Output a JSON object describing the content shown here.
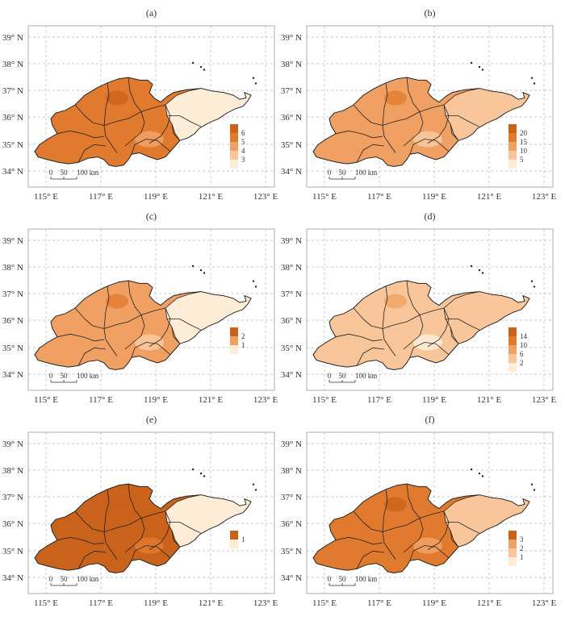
{
  "figure": {
    "colors": {
      "c1": "#fdecd6",
      "c2": "#f8c69a",
      "c3": "#f1a063",
      "c4": "#e07a2e",
      "c5": "#c9621b",
      "grid": "#b8b8b8",
      "border": "#222222"
    },
    "panels": [
      {
        "label": "(a)",
        "legend": [
          "6",
          "5",
          "4",
          "3"
        ],
        "lat_ticks": [
          "39° N",
          "38° N",
          "37° N",
          "36° N",
          "35° N",
          "34° N"
        ],
        "lon_ticks": [
          "115° E",
          "117° E",
          "119° E",
          "121° E",
          "123° E"
        ],
        "scale_labels": [
          "0",
          "50",
          "100 km"
        ],
        "dominant_level": 4
      },
      {
        "label": "(b)",
        "legend": [
          "20",
          "15",
          "10",
          "5"
        ],
        "lat_ticks": [
          "39° N",
          "38° N",
          "37° N",
          "36° N",
          "35° N",
          "34° N"
        ],
        "lon_ticks": [
          "115° E",
          "117° E",
          "119° E",
          "121° E",
          "123° E"
        ],
        "scale_labels": [
          "0",
          "50",
          "100 km"
        ],
        "dominant_level": 3
      },
      {
        "label": "(c)",
        "legend": [
          "2",
          "1"
        ],
        "lat_ticks": [
          "39° N",
          "38° N",
          "37° N",
          "36° N",
          "35° N",
          "34° N"
        ],
        "lon_ticks": [
          "115° E",
          "117° E",
          "119° E",
          "121° E",
          "123° E"
        ],
        "scale_labels": [
          "0",
          "50",
          "100 km"
        ],
        "dominant_level": 3
      },
      {
        "label": "(d)",
        "legend": [
          "14",
          "10",
          "6",
          "2"
        ],
        "lat_ticks": [
          "39° N",
          "38° N",
          "37° N",
          "36° N",
          "35° N",
          "34° N"
        ],
        "lon_ticks": [
          "115° E",
          "117° E",
          "119° E",
          "121° E",
          "123° E"
        ],
        "scale_labels": [
          "0",
          "50",
          "100 km"
        ],
        "dominant_level": 2
      },
      {
        "label": "(e)",
        "legend": [
          "1"
        ],
        "lat_ticks": [
          "39° N",
          "38° N",
          "37° N",
          "36° N",
          "35° N",
          "34° N"
        ],
        "lon_ticks": [
          "115° E",
          "117° E",
          "119° E",
          "121° E",
          "123° E"
        ],
        "scale_labels": [
          "0",
          "50",
          "100 km"
        ],
        "dominant_level": 5
      },
      {
        "label": "(f)",
        "legend": [
          "3",
          "2",
          "1"
        ],
        "lat_ticks": [
          "39° N",
          "38° N",
          "37° N",
          "36° N",
          "35° N",
          "34° N"
        ],
        "lon_ticks": [
          "115° E",
          "117° E",
          "119° E",
          "121° E",
          "123° E"
        ],
        "scale_labels": [
          "0",
          "50",
          "100 km"
        ],
        "dominant_level": 4
      }
    ]
  }
}
